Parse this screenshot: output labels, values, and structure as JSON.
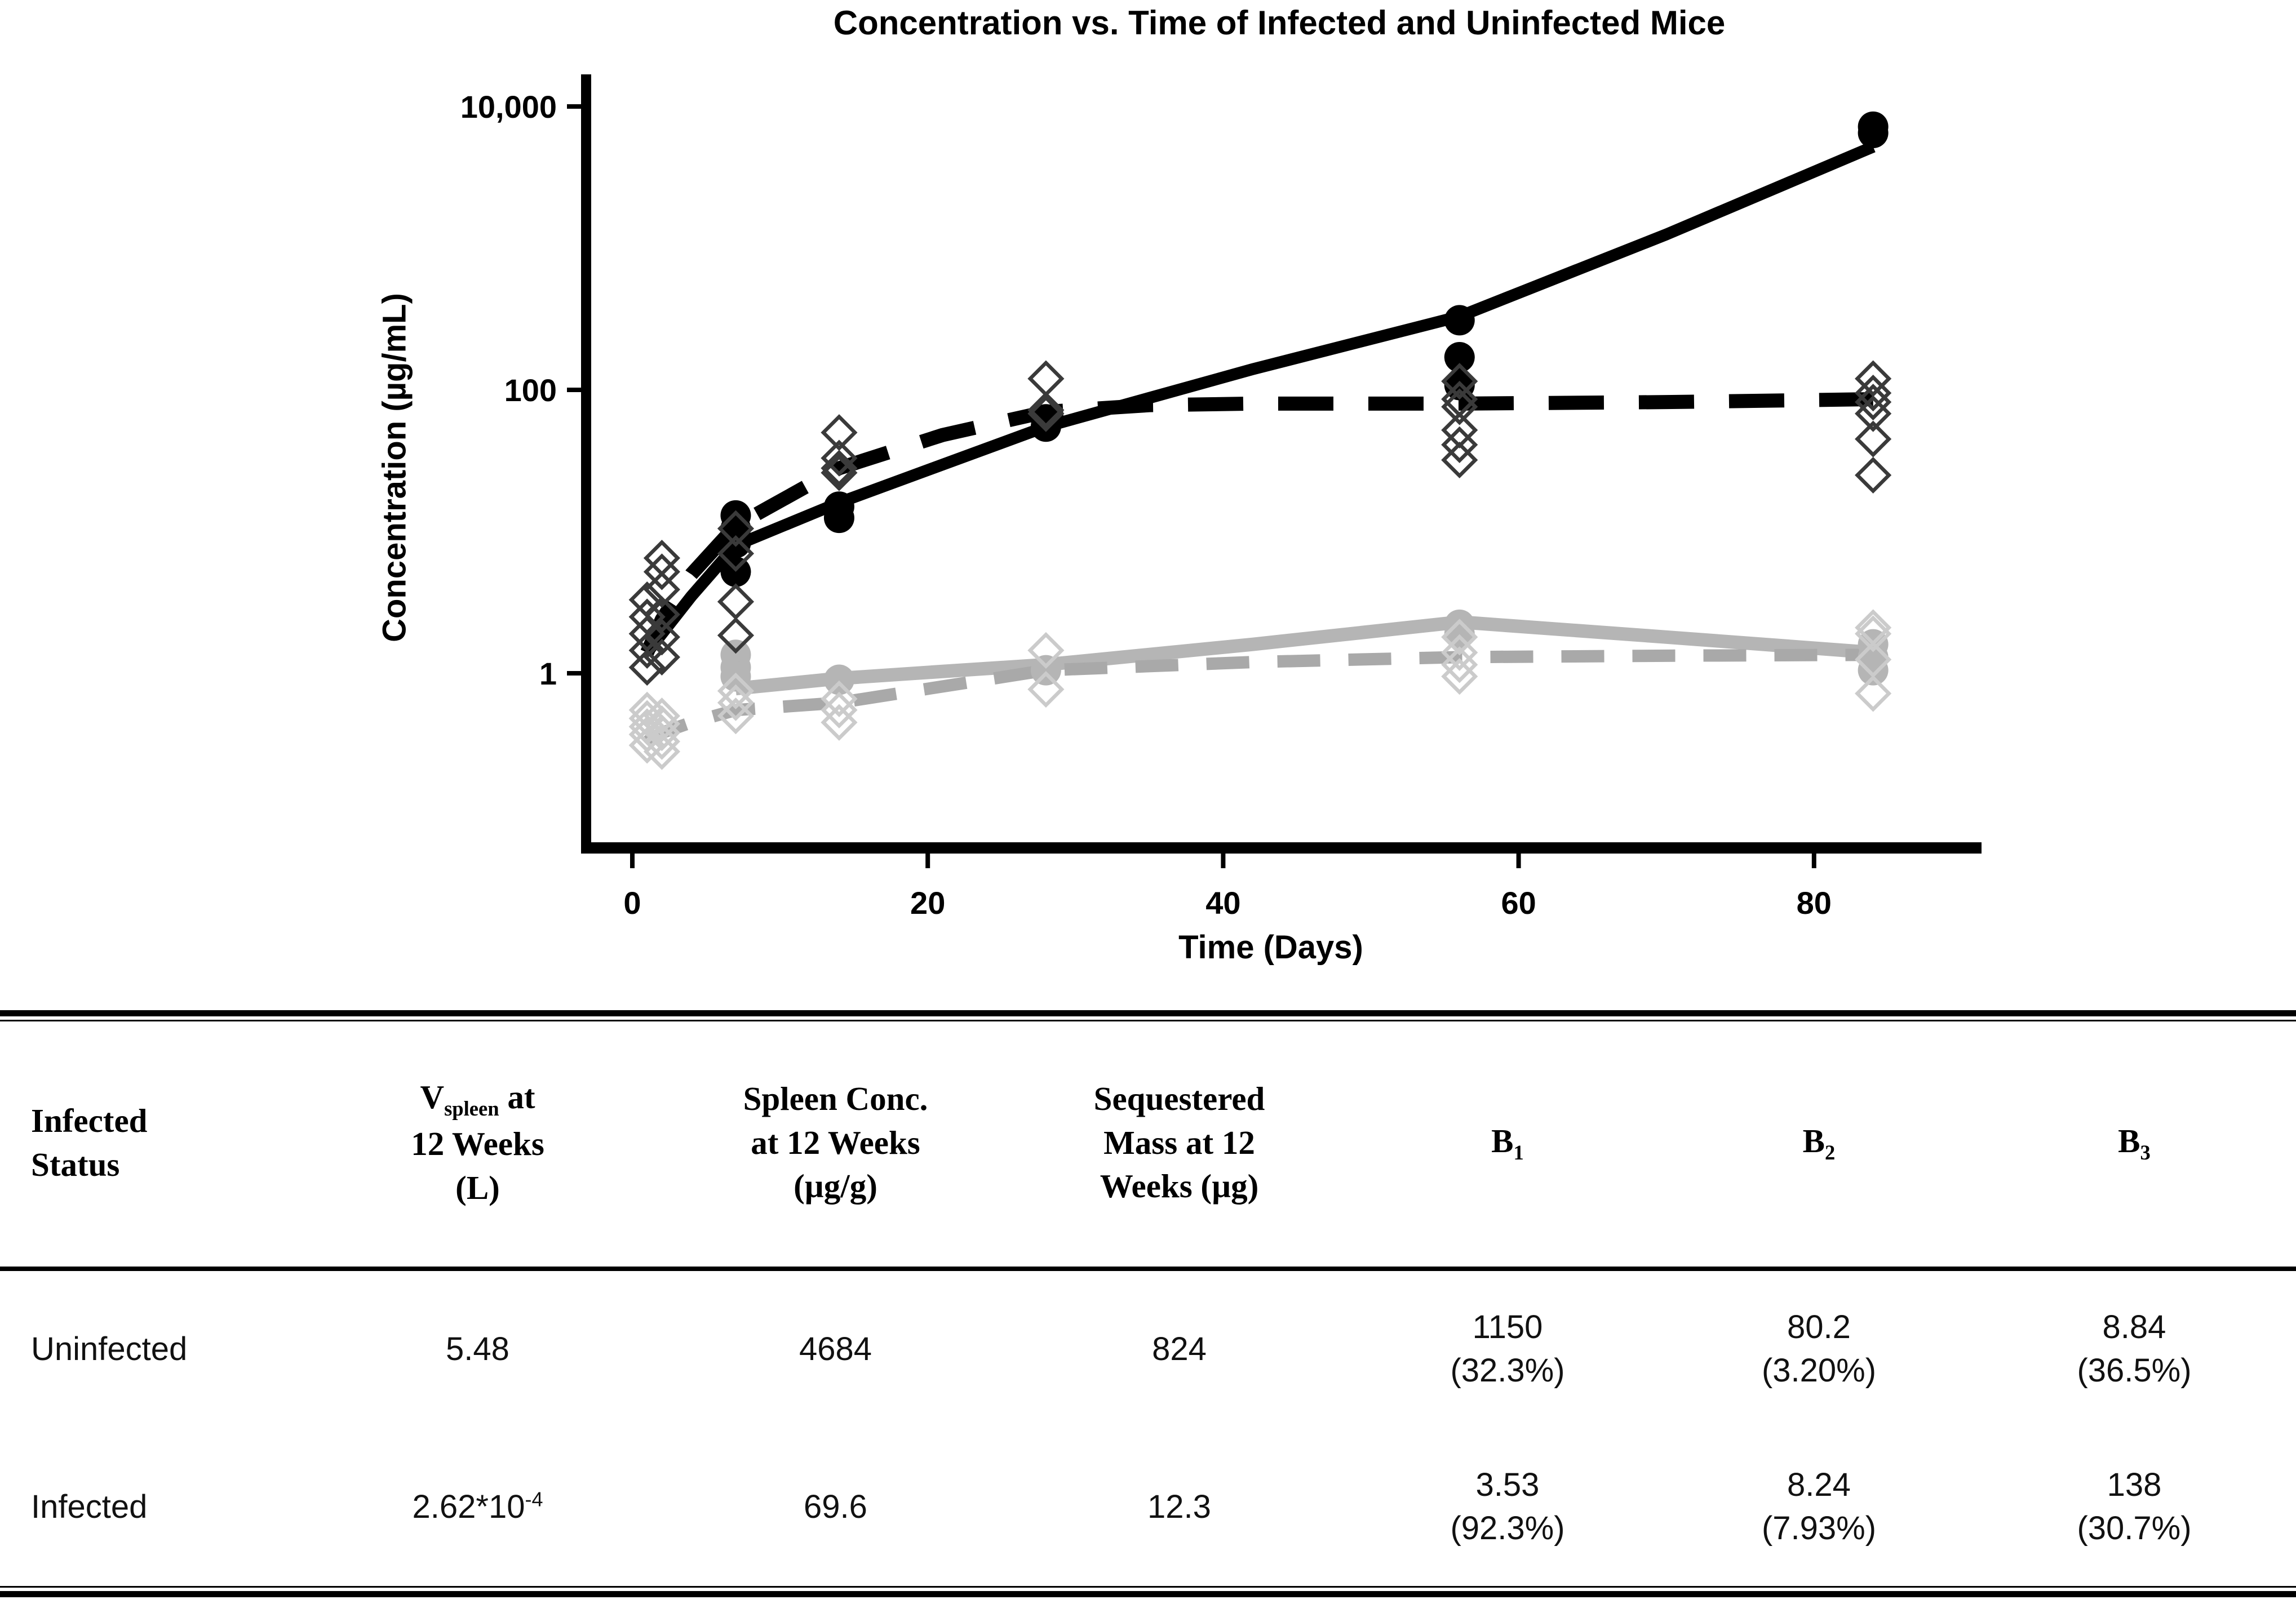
{
  "figure": {
    "title": "Concentration vs. Time of Infected and Uninfected Mice",
    "x_axis_label": "Time (Days)",
    "y_axis_label": "Concentration (µg/mL)"
  },
  "chart_data": {
    "type": "scatter",
    "title": "Concentration vs. Time of Infected and Uninfected Mice",
    "xlabel": "Time (Days)",
    "ylabel": "Concentration (µg/mL)",
    "x_ticks": [
      0,
      20,
      40,
      60,
      80
    ],
    "y_ticks": [
      {
        "value": 10000,
        "label": "10,000"
      },
      {
        "value": 100,
        "label": "100"
      },
      {
        "value": 1,
        "label": "1"
      }
    ],
    "y_scale": "log",
    "xlim": [
      -3.5,
      91
    ],
    "ylim_log": [
      -0.85,
      4.22
    ],
    "grid": false,
    "legend": "none",
    "series": [
      {
        "name": "uninfected-fit-solid",
        "kind": "fit-line",
        "line": "solid",
        "color": "#b5b5b5",
        "width": 24,
        "points": [
          [
            7,
            0.78
          ],
          [
            14,
            0.92
          ],
          [
            21,
            1.03
          ],
          [
            28,
            1.15
          ],
          [
            42,
            1.6
          ],
          [
            56,
            2.3
          ],
          [
            70,
            1.8
          ],
          [
            84,
            1.4
          ]
        ]
      },
      {
        "name": "uninfected-fit-dashed",
        "kind": "fit-line",
        "line": "dashed",
        "color": "#a9a9a9",
        "width": 22,
        "points": [
          [
            1,
            0.33
          ],
          [
            2,
            0.38
          ],
          [
            4,
            0.45
          ],
          [
            7,
            0.55
          ],
          [
            14,
            0.62
          ],
          [
            28,
            1.05
          ],
          [
            42,
            1.2
          ],
          [
            56,
            1.3
          ],
          [
            70,
            1.33
          ],
          [
            84,
            1.35
          ]
        ]
      },
      {
        "name": "uninfected-obs-circles",
        "kind": "observations",
        "marker": "circle",
        "color": "#b5b5b5",
        "points": [
          [
            7,
            1.35
          ],
          [
            7,
            1.1
          ],
          [
            7,
            0.95
          ],
          [
            14,
            0.9
          ],
          [
            28,
            1.05
          ],
          [
            56,
            2.2
          ],
          [
            56,
            1.9
          ],
          [
            84,
            1.6
          ],
          [
            84,
            1.3
          ],
          [
            84,
            1.05
          ]
        ]
      },
      {
        "name": "uninfected-obs-diamonds",
        "kind": "observations",
        "marker": "diamond",
        "color": "#cbcbcb",
        "points": [
          [
            1,
            0.55
          ],
          [
            1,
            0.48
          ],
          [
            1,
            0.42
          ],
          [
            1,
            0.37
          ],
          [
            1,
            0.31
          ],
          [
            2,
            0.5
          ],
          [
            2,
            0.44
          ],
          [
            2,
            0.38
          ],
          [
            2,
            0.33
          ],
          [
            2,
            0.28
          ],
          [
            7,
            0.75
          ],
          [
            7,
            0.62
          ],
          [
            7,
            0.5
          ],
          [
            14,
            0.66
          ],
          [
            14,
            0.55
          ],
          [
            14,
            0.45
          ],
          [
            28,
            1.45
          ],
          [
            28,
            0.77
          ],
          [
            56,
            1.8
          ],
          [
            56,
            1.4
          ],
          [
            56,
            1.15
          ],
          [
            56,
            0.95
          ],
          [
            84,
            2.1
          ],
          [
            84,
            1.9
          ],
          [
            84,
            1.25
          ],
          [
            84,
            0.72
          ]
        ]
      },
      {
        "name": "infected-fit-solid",
        "kind": "fit-line",
        "line": "solid",
        "color": "#000000",
        "width": 21,
        "points": [
          [
            1,
            1.4
          ],
          [
            4,
            3.5
          ],
          [
            7,
            8
          ],
          [
            14,
            16
          ],
          [
            28,
            55
          ],
          [
            42,
            140
          ],
          [
            56,
            330
          ],
          [
            70,
            1250
          ],
          [
            84,
            5200
          ]
        ]
      },
      {
        "name": "infected-fit-dashed",
        "kind": "fit-line",
        "line": "dashed",
        "color": "#000000",
        "width": 25,
        "points": [
          [
            1,
            1.4
          ],
          [
            2,
            2.4
          ],
          [
            4,
            5
          ],
          [
            7,
            11
          ],
          [
            14,
            28
          ],
          [
            21,
            48
          ],
          [
            28,
            70
          ],
          [
            35,
            78
          ],
          [
            42,
            80
          ],
          [
            56,
            80
          ],
          [
            70,
            82
          ],
          [
            84,
            86
          ]
        ]
      },
      {
        "name": "infected-obs-circles",
        "kind": "observations",
        "marker": "circle",
        "color": "#000000",
        "points": [
          [
            7,
            13
          ],
          [
            7,
            10.5
          ],
          [
            7,
            8.3
          ],
          [
            7,
            5.2
          ],
          [
            14,
            15
          ],
          [
            14,
            12.5
          ],
          [
            28,
            62
          ],
          [
            28,
            55
          ],
          [
            56,
            310
          ],
          [
            56,
            170
          ],
          [
            56,
            108
          ],
          [
            84,
            7200
          ],
          [
            84,
            6500
          ]
        ]
      },
      {
        "name": "infected-obs-diamonds",
        "kind": "observations",
        "marker": "diamond",
        "color": "#3a3a3a",
        "points": [
          [
            1,
            1.1
          ],
          [
            1,
            1.45
          ],
          [
            1,
            1.9
          ],
          [
            1,
            2.5
          ],
          [
            1,
            3.3
          ],
          [
            2,
            1.3
          ],
          [
            2,
            1.8
          ],
          [
            2,
            2.6
          ],
          [
            2,
            3.9
          ],
          [
            2,
            5.2
          ],
          [
            2,
            6.5
          ],
          [
            7,
            10.5
          ],
          [
            7,
            7
          ],
          [
            7,
            3.2
          ],
          [
            7,
            1.85
          ],
          [
            14,
            50
          ],
          [
            14,
            33
          ],
          [
            14,
            28
          ],
          [
            14,
            26
          ],
          [
            28,
            120
          ],
          [
            28,
            72
          ],
          [
            28,
            68
          ],
          [
            56,
            115
          ],
          [
            56,
            86
          ],
          [
            56,
            76
          ],
          [
            56,
            52
          ],
          [
            56,
            41
          ],
          [
            56,
            32
          ],
          [
            84,
            120
          ],
          [
            84,
            95
          ],
          [
            84,
            82
          ],
          [
            84,
            68
          ],
          [
            84,
            45
          ],
          [
            84,
            25
          ]
        ]
      }
    ]
  },
  "table": {
    "headers": {
      "infected_status": {
        "line1": "Infected",
        "line2": "Status"
      },
      "v_spleen": {
        "pre": "V",
        "sub": "spleen",
        "post": " at",
        "line2": "12 Weeks",
        "line3": "(L)"
      },
      "spleen_conc": {
        "line1": "Spleen Conc.",
        "line2": "at 12 Weeks",
        "line3": "(µg/g)"
      },
      "seq_mass": {
        "line1": "Sequestered",
        "line2": "Mass at 12",
        "line3": "Weeks (µg)"
      },
      "b1": {
        "pre": "B",
        "sub": "1"
      },
      "b2": {
        "pre": "B",
        "sub": "2"
      },
      "b3": {
        "pre": "B",
        "sub": "3"
      }
    },
    "rows": [
      {
        "status": "Uninfected",
        "v_spleen": {
          "base": "5.48"
        },
        "spleen_conc": "4684",
        "seq_mass": "824",
        "b1": {
          "value": "1150",
          "pct": "(32.3%)"
        },
        "b2": {
          "value": "80.2",
          "pct": "(3.20%)"
        },
        "b3": {
          "value": "8.84",
          "pct": "(36.5%)"
        }
      },
      {
        "status": "Infected",
        "v_spleen": {
          "base": "2.62*10",
          "sup": "-4"
        },
        "spleen_conc": "69.6",
        "seq_mass": "12.3",
        "b1": {
          "value": "3.53",
          "pct": "(92.3%)"
        },
        "b2": {
          "value": "8.24",
          "pct": "(7.93%)"
        },
        "b3": {
          "value": "138",
          "pct": "(30.7%)"
        }
      }
    ]
  },
  "colors": {
    "infected": "#000000",
    "uninfected_line": "#b5b5b5",
    "uninfected_marker": "#cbcbcb",
    "axis": "#000000"
  }
}
